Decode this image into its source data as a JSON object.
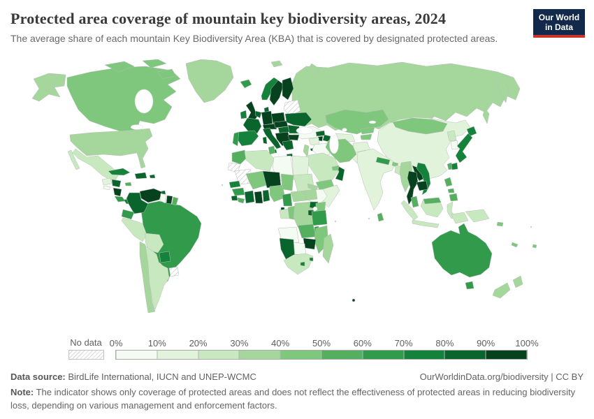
{
  "header": {
    "title": "Protected area coverage of mountain key biodiversity areas, 2024",
    "subtitle": "The average share of each mountain Key Biodiversity Area (KBA) that is covered by designated protected areas.",
    "logo": {
      "line1": "Our World",
      "line2": "in Data",
      "bg_color": "#12294b",
      "accent_color": "#cb342c"
    }
  },
  "legend": {
    "no_data_label": "No data",
    "ticks": [
      "0%",
      "10%",
      "20%",
      "30%",
      "40%",
      "50%",
      "60%",
      "70%",
      "80%",
      "90%",
      "100%"
    ],
    "palette": [
      "#f4fbf2",
      "#e2f3db",
      "#c8e9bf",
      "#a5d79d",
      "#7ec77d",
      "#54b05f",
      "#319a4b",
      "#15823c",
      "#0a652c",
      "#07421f"
    ],
    "bin_labels": [
      "0-10%",
      "10-20%",
      "20-30%",
      "30-40%",
      "40-50%",
      "50-60%",
      "60-70%",
      "70-80%",
      "80-90%",
      "90-100%"
    ]
  },
  "footer": {
    "data_source_label": "Data source:",
    "data_source": " BirdLife International, IUCN and UNEP-WCMC",
    "link": "OurWorldinData.org/biodiversity | CC BY",
    "note_label": "Note:",
    "note": " The indicator shows only coverage of protected areas and does not reflect the effectiveness of protected areas in reducing biodiversity loss, depending on various management and enforcement factors."
  },
  "chart_data": {
    "type": "choropleth",
    "title": "Protected area coverage of mountain key biodiversity areas",
    "year": 2024,
    "unit": "% of mountain KBA covered by protected areas",
    "bins": [
      "0-10%",
      "10-20%",
      "20-30%",
      "30-40%",
      "40-50%",
      "50-60%",
      "60-70%",
      "70-80%",
      "80-90%",
      "90-100%"
    ],
    "legend_no_data": "No data",
    "countries": [
      {
        "id": "usa",
        "name": "United States",
        "bin": 3
      },
      {
        "id": "canada",
        "name": "Canada",
        "bin": 4
      },
      {
        "id": "greenland",
        "name": "Greenland",
        "bin": 3
      },
      {
        "id": "mexico",
        "name": "Mexico",
        "bin": 2
      },
      {
        "id": "guatemala",
        "name": "Guatemala",
        "bin": 1
      },
      {
        "id": "el-salvador",
        "name": "El Salvador",
        "bin": 0
      },
      {
        "id": "honduras",
        "name": "Honduras",
        "bin": 8
      },
      {
        "id": "nicaragua",
        "name": "Nicaragua",
        "bin": 9
      },
      {
        "id": "costa-rica",
        "name": "Costa Rica",
        "bin": 6
      },
      {
        "id": "panama",
        "name": "Panama",
        "bin": 7
      },
      {
        "id": "cuba",
        "name": "Cuba",
        "bin": 7
      },
      {
        "id": "hispaniola",
        "name": "Haiti & Dominican Republic",
        "bin": 8
      },
      {
        "id": "jamaica",
        "name": "Jamaica",
        "bin": 5
      },
      {
        "id": "puerto-rico",
        "name": "Puerto Rico",
        "bin": 8
      },
      {
        "id": "trinidad",
        "name": "Trinidad & Tobago",
        "bin": 8
      },
      {
        "id": "venezuela",
        "name": "Venezuela",
        "bin": 9
      },
      {
        "id": "colombia",
        "name": "Colombia",
        "bin": 8
      },
      {
        "id": "guyana",
        "name": "Guyana",
        "bin": 0
      },
      {
        "id": "suriname",
        "name": "Suriname",
        "bin": 9
      },
      {
        "id": "french-guiana",
        "name": "French Guiana",
        "bin": 5
      },
      {
        "id": "ecuador",
        "name": "Ecuador",
        "bin": 6
      },
      {
        "id": "peru",
        "name": "Peru",
        "bin": 2
      },
      {
        "id": "brazil",
        "name": "Brazil",
        "bin": 6
      },
      {
        "id": "bolivia",
        "name": "Bolivia",
        "bin": 2
      },
      {
        "id": "paraguay",
        "name": "Paraguay",
        "bin": 7
      },
      {
        "id": "uruguay",
        "name": "Uruguay",
        "bin": "no-data"
      },
      {
        "id": "chile",
        "name": "Chile",
        "bin": 3
      },
      {
        "id": "argentina",
        "name": "Argentina",
        "bin": 2
      },
      {
        "id": "iceland",
        "name": "Iceland",
        "bin": 6
      },
      {
        "id": "united-kingdom",
        "name": "United Kingdom",
        "bin": 9
      },
      {
        "id": "ireland",
        "name": "Ireland",
        "bin": 7
      },
      {
        "id": "norway",
        "name": "Norway",
        "bin": 7
      },
      {
        "id": "sweden",
        "name": "Sweden",
        "bin": 9
      },
      {
        "id": "finland",
        "name": "Finland",
        "bin": 9
      },
      {
        "id": "denmark",
        "name": "Denmark",
        "bin": 8
      },
      {
        "id": "baltics-belarus",
        "name": "Baltic states & Belarus",
        "bin": "no-data"
      },
      {
        "id": "poland",
        "name": "Poland",
        "bin": 9
      },
      {
        "id": "germany",
        "name": "Germany",
        "bin": 9
      },
      {
        "id": "benelux",
        "name": "Belgium & Netherlands",
        "bin": 8
      },
      {
        "id": "france",
        "name": "France",
        "bin": 8
      },
      {
        "id": "spain",
        "name": "Spain",
        "bin": 7
      },
      {
        "id": "portugal",
        "name": "Portugal",
        "bin": 6
      },
      {
        "id": "switzerland-austria",
        "name": "Switzerland & Austria",
        "bin": 9
      },
      {
        "id": "czechia-slovakia",
        "name": "Czechia & Slovakia",
        "bin": 9
      },
      {
        "id": "italy",
        "name": "Italy",
        "bin": 8
      },
      {
        "id": "hungary",
        "name": "Hungary",
        "bin": 8
      },
      {
        "id": "balkans",
        "name": "Western Balkans",
        "bin": 9
      },
      {
        "id": "romania",
        "name": "Romania",
        "bin": 8
      },
      {
        "id": "bulgaria",
        "name": "Bulgaria",
        "bin": 9
      },
      {
        "id": "greece",
        "name": "Greece",
        "bin": 8
      },
      {
        "id": "ukraine",
        "name": "Ukraine",
        "bin": 8
      },
      {
        "id": "russia",
        "name": "Russia",
        "bin": 3
      },
      {
        "id": "svalbard",
        "name": "Svalbard",
        "bin": 3
      },
      {
        "id": "turkey",
        "name": "Turkey",
        "bin": 0
      },
      {
        "id": "georgia",
        "name": "Georgia",
        "bin": 8
      },
      {
        "id": "armenia",
        "name": "Armenia",
        "bin": 9
      },
      {
        "id": "azerbaijan",
        "name": "Azerbaijan",
        "bin": 8
      },
      {
        "id": "cyprus",
        "name": "Cyprus",
        "bin": 8
      },
      {
        "id": "syria",
        "name": "Syria",
        "bin": 1
      },
      {
        "id": "iraq",
        "name": "Iraq",
        "bin": 0
      },
      {
        "id": "israel-jordan",
        "name": "Israel & Jordan",
        "bin": 3
      },
      {
        "id": "saudi-arabia",
        "name": "Saudi Arabia",
        "bin": 2
      },
      {
        "id": "yemen",
        "name": "Yemen",
        "bin": 4
      },
      {
        "id": "oman",
        "name": "Oman",
        "bin": 8
      },
      {
        "id": "uae",
        "name": "United Arab Emirates",
        "bin": 4
      },
      {
        "id": "iran",
        "name": "Iran",
        "bin": 4
      },
      {
        "id": "kazakhstan",
        "name": "Kazakhstan",
        "bin": 4
      },
      {
        "id": "uzbekistan",
        "name": "Uzbekistan",
        "bin": 1
      },
      {
        "id": "turkmenistan",
        "name": "Turkmenistan",
        "bin": 1
      },
      {
        "id": "kyrgyzstan",
        "name": "Kyrgyzstan",
        "bin": 4
      },
      {
        "id": "tajikistan",
        "name": "Tajikistan",
        "bin": 4
      },
      {
        "id": "afghanistan",
        "name": "Afghanistan",
        "bin": 1
      },
      {
        "id": "pakistan",
        "name": "Pakistan",
        "bin": 1
      },
      {
        "id": "india",
        "name": "India",
        "bin": 1
      },
      {
        "id": "nepal",
        "name": "Nepal",
        "bin": 6
      },
      {
        "id": "bhutan",
        "name": "Bhutan",
        "bin": 4
      },
      {
        "id": "bangladesh",
        "name": "Bangladesh",
        "bin": 2
      },
      {
        "id": "sri-lanka",
        "name": "Sri Lanka",
        "bin": 5
      },
      {
        "id": "china",
        "name": "China",
        "bin": 1
      },
      {
        "id": "mongolia",
        "name": "Mongolia",
        "bin": 4
      },
      {
        "id": "north-korea",
        "name": "North Korea",
        "bin": 2
      },
      {
        "id": "south-korea",
        "name": "South Korea",
        "bin": 0
      },
      {
        "id": "japan",
        "name": "Japan",
        "bin": 7
      },
      {
        "id": "taiwan",
        "name": "Taiwan",
        "bin": 5
      },
      {
        "id": "myanmar",
        "name": "Myanmar",
        "bin": 3
      },
      {
        "id": "thailand",
        "name": "Thailand",
        "bin": 9
      },
      {
        "id": "laos",
        "name": "Laos",
        "bin": 9
      },
      {
        "id": "cambodia",
        "name": "Cambodia",
        "bin": 9
      },
      {
        "id": "vietnam",
        "name": "Vietnam",
        "bin": 7
      },
      {
        "id": "malaysia",
        "name": "Malaysia",
        "bin": 5
      },
      {
        "id": "indonesia",
        "name": "Indonesia",
        "bin": 2
      },
      {
        "id": "papua-new-guinea",
        "name": "Papua New Guinea",
        "bin": 2
      },
      {
        "id": "philippines",
        "name": "Philippines",
        "bin": 5
      },
      {
        "id": "morocco",
        "name": "Morocco",
        "bin": 5
      },
      {
        "id": "algeria",
        "name": "Algeria",
        "bin": 2
      },
      {
        "id": "tunisia",
        "name": "Tunisia",
        "bin": 5
      },
      {
        "id": "libya",
        "name": "Libya",
        "bin": 0
      },
      {
        "id": "egypt",
        "name": "Egypt",
        "bin": 1
      },
      {
        "id": "western-sahara",
        "name": "Western Sahara",
        "bin": "no-data"
      },
      {
        "id": "mauritania",
        "name": "Mauritania",
        "bin": "no-data"
      },
      {
        "id": "mali",
        "name": "Mali",
        "bin": 4
      },
      {
        "id": "niger",
        "name": "Niger",
        "bin": 9
      },
      {
        "id": "chad",
        "name": "Chad",
        "bin": 4
      },
      {
        "id": "sudan",
        "name": "Sudan",
        "bin": 2
      },
      {
        "id": "eritrea",
        "name": "Eritrea",
        "bin": 3
      },
      {
        "id": "ethiopia",
        "name": "Ethiopia",
        "bin": 0
      },
      {
        "id": "somalia",
        "name": "Somalia",
        "bin": 1
      },
      {
        "id": "senegal",
        "name": "Senegal",
        "bin": 7
      },
      {
        "id": "guinea",
        "name": "Guinea",
        "bin": 6
      },
      {
        "id": "sierra-leone",
        "name": "Sierra Leone",
        "bin": 8
      },
      {
        "id": "liberia",
        "name": "Liberia",
        "bin": 5
      },
      {
        "id": "cote-divoire",
        "name": "Cote d'Ivoire",
        "bin": 8
      },
      {
        "id": "ghana",
        "name": "Ghana",
        "bin": 9
      },
      {
        "id": "benin-togo",
        "name": "Benin & Togo",
        "bin": 8
      },
      {
        "id": "nigeria",
        "name": "Nigeria",
        "bin": 4
      },
      {
        "id": "cameroon",
        "name": "Cameroon",
        "bin": 6
      },
      {
        "id": "central-african-republic",
        "name": "Central African Republic",
        "bin": 3
      },
      {
        "id": "south-sudan",
        "name": "South Sudan",
        "bin": 3
      },
      {
        "id": "equatorial-guinea",
        "name": "Equatorial Guinea",
        "bin": 9
      },
      {
        "id": "gabon",
        "name": "Gabon",
        "bin": 2
      },
      {
        "id": "congo",
        "name": "Congo",
        "bin": 4
      },
      {
        "id": "dr-congo",
        "name": "Democratic Republic of Congo",
        "bin": 3
      },
      {
        "id": "uganda",
        "name": "Uganda",
        "bin": 8
      },
      {
        "id": "kenya",
        "name": "Kenya",
        "bin": 4
      },
      {
        "id": "rwanda-burundi",
        "name": "Rwanda & Burundi",
        "bin": 8
      },
      {
        "id": "tanzania",
        "name": "Tanzania",
        "bin": 6
      },
      {
        "id": "angola",
        "name": "Angola",
        "bin": 0
      },
      {
        "id": "zambia",
        "name": "Zambia",
        "bin": 5
      },
      {
        "id": "malawi",
        "name": "Malawi",
        "bin": 6
      },
      {
        "id": "mozambique",
        "name": "Mozambique",
        "bin": 4
      },
      {
        "id": "zimbabwe",
        "name": "Zimbabwe",
        "bin": 9
      },
      {
        "id": "botswana",
        "name": "Botswana",
        "bin": 0
      },
      {
        "id": "namibia",
        "name": "Namibia",
        "bin": 8
      },
      {
        "id": "south-africa",
        "name": "South Africa",
        "bin": 2
      },
      {
        "id": "lesotho",
        "name": "Lesotho",
        "bin": 7
      },
      {
        "id": "eswatini",
        "name": "Eswatini",
        "bin": 7
      },
      {
        "id": "madagascar",
        "name": "Madagascar",
        "bin": 3
      },
      {
        "id": "australia",
        "name": "Australia",
        "bin": 6
      },
      {
        "id": "new-zealand",
        "name": "New Zealand",
        "bin": 3
      },
      {
        "id": "new-caledonia",
        "name": "New Caledonia",
        "bin": 4
      },
      {
        "id": "solomon-islands",
        "name": "Solomon Islands",
        "bin": 4
      },
      {
        "id": "fiji",
        "name": "Fiji",
        "bin": 4
      },
      {
        "id": "kerguelen",
        "name": "Southern Indian Ocean islands",
        "bin": 9
      }
    ]
  }
}
